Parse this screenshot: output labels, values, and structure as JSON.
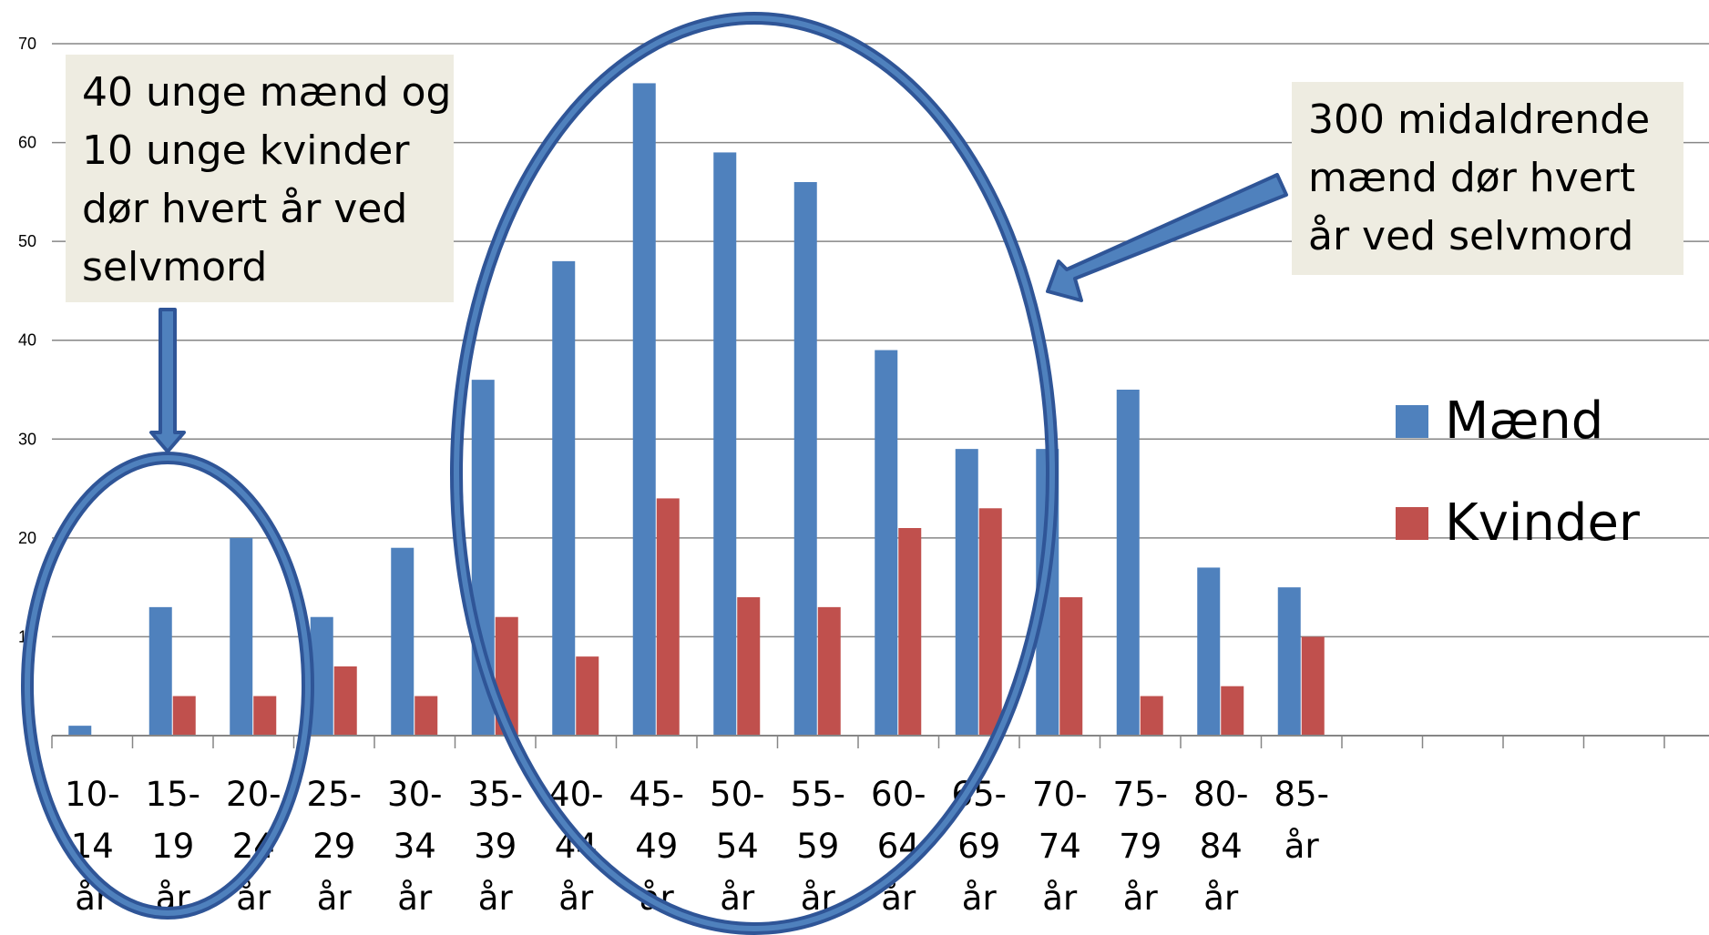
{
  "chart_data": {
    "type": "bar",
    "title": "",
    "xlabel": "",
    "ylabel": "",
    "ylim": [
      0,
      70
    ],
    "y_ticks": [
      "0",
      "10",
      "20",
      "30",
      "40",
      "50",
      "60",
      "70"
    ],
    "categories": [
      "10-14 år",
      "15-19 år",
      "20-24 år",
      "25-29 år",
      "30-34 år",
      "35-39 år",
      "40-44 år",
      "45-49 år",
      "50-54 år",
      "55-59 år",
      "60-64 år",
      "65-69 år",
      "70-74 år",
      "75-79 år",
      "80-84 år",
      "85- år",
      "",
      "",
      "",
      "",
      ""
    ],
    "category_labels": [
      [
        "10-",
        "14",
        "år"
      ],
      [
        "15-",
        "19",
        "år"
      ],
      [
        "20-",
        "24",
        "år"
      ],
      [
        "25-",
        "29",
        "år"
      ],
      [
        "30-",
        "34",
        "år"
      ],
      [
        "35-",
        "39",
        "år"
      ],
      [
        "40-",
        "44",
        "år"
      ],
      [
        "45-",
        "49",
        "år"
      ],
      [
        "50-",
        "54",
        "år"
      ],
      [
        "55-",
        "59",
        "år"
      ],
      [
        "60-",
        "64",
        "år"
      ],
      [
        "65-",
        "69",
        "år"
      ],
      [
        "70-",
        "74",
        "år"
      ],
      [
        "75-",
        "79",
        "år"
      ],
      [
        "80-",
        "84",
        "år"
      ],
      [
        "85-",
        "år"
      ],
      [],
      [],
      [],
      [],
      []
    ],
    "series": [
      {
        "name": "Mænd",
        "color": "#4f81bd",
        "values": [
          1,
          13,
          20,
          12,
          19,
          36,
          48,
          66,
          59,
          56,
          39,
          29,
          29,
          35,
          17,
          15,
          null,
          null,
          null,
          null,
          null
        ]
      },
      {
        "name": "Kvinder",
        "color": "#c0504d",
        "values": [
          0,
          4,
          4,
          7,
          4,
          12,
          8,
          24,
          14,
          13,
          21,
          23,
          14,
          4,
          5,
          10,
          null,
          null,
          null,
          null,
          null
        ]
      }
    ],
    "grid": true,
    "legend_position": "right"
  },
  "annotations": {
    "left_callout": "40 unge mænd og\n10 unge kvinder\ndør hvert år ved\nselvmord",
    "right_callout": "300 midaldrende\nmænd dør hvert\når ved selvmord"
  },
  "colors": {
    "callout_bg": "#eeece1",
    "highlight_stroke": "#2f5597",
    "highlight_fill": "#4f81bd"
  }
}
